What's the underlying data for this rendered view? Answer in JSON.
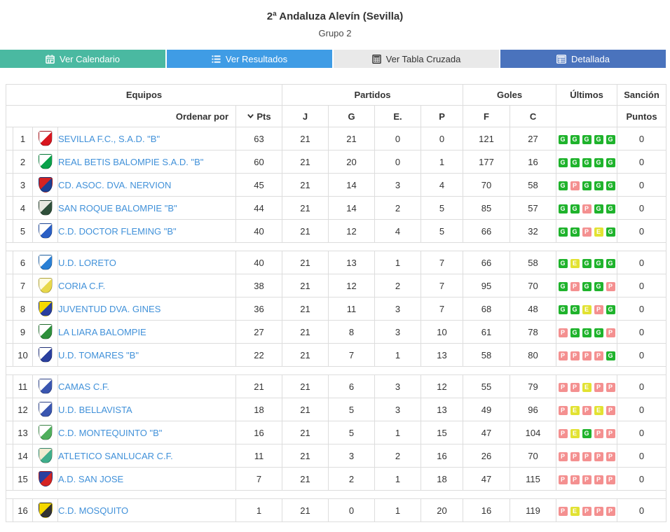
{
  "header": {
    "title": "2ª Andaluza Alevín (Sevilla)",
    "subtitle": "Grupo 2"
  },
  "tabs": [
    {
      "label": "Ver Calendario",
      "icon": "calendar-icon",
      "bg": "#4ab9a1",
      "fg": "#ffffff"
    },
    {
      "label": "Ver Resultados",
      "icon": "list-icon",
      "bg": "#3f9ce5",
      "fg": "#ffffff"
    },
    {
      "label": "Ver Tabla Cruzada",
      "icon": "grid-icon",
      "bg": "#e9e9e9",
      "fg": "#333333"
    },
    {
      "label": "Detallada",
      "icon": "table-icon",
      "bg": "#4a73bd",
      "fg": "#ffffff"
    }
  ],
  "table": {
    "group_headers": {
      "equipos": "Equipos",
      "partidos": "Partidos",
      "goles": "Goles",
      "ultimos": "Últimos",
      "sancion": "Sanción"
    },
    "sub_headers": {
      "ordenar": "Ordenar por",
      "pts": "Pts",
      "j": "J",
      "g": "G",
      "e": "E.",
      "p": "P",
      "f": "F",
      "c": "C",
      "puntos": "Puntos"
    },
    "link_color": "#4191d9",
    "form_colors": {
      "G": "#1fb32c",
      "E": "#e2e232",
      "P": "#f49090"
    },
    "separators_after": [
      5,
      10,
      15
    ],
    "rows": [
      {
        "pos": 1,
        "team": "SEVILLA F.C., S.A.D. \"B\"",
        "pts": 63,
        "j": 21,
        "g": 21,
        "e": 0,
        "p": 0,
        "f": 121,
        "c": 27,
        "form": [
          "G",
          "G",
          "G",
          "G",
          "G"
        ],
        "sancion": 0,
        "crest": {
          "primary": "#d8161f",
          "secondary": "#ffffff"
        }
      },
      {
        "pos": 2,
        "team": "REAL BETIS BALOMPIE S.A.D. \"B\"",
        "pts": 60,
        "j": 21,
        "g": 20,
        "e": 0,
        "p": 1,
        "f": 177,
        "c": 16,
        "form": [
          "G",
          "G",
          "G",
          "G",
          "G"
        ],
        "sancion": 0,
        "crest": {
          "primary": "#0aa14a",
          "secondary": "#ffffff"
        }
      },
      {
        "pos": 3,
        "team": "CD. ASOC. DVA. NERVION",
        "pts": 45,
        "j": 21,
        "g": 14,
        "e": 3,
        "p": 4,
        "f": 70,
        "c": 58,
        "form": [
          "G",
          "P",
          "G",
          "G",
          "G"
        ],
        "sancion": 0,
        "crest": {
          "primary": "#1b3f94",
          "secondary": "#d42323"
        }
      },
      {
        "pos": 4,
        "team": "SAN ROQUE BALOMPIE \"B\"",
        "pts": 44,
        "j": 21,
        "g": 14,
        "e": 2,
        "p": 5,
        "f": 85,
        "c": 57,
        "form": [
          "G",
          "G",
          "P",
          "G",
          "G"
        ],
        "sancion": 0,
        "crest": {
          "primary": "#2f4f3a",
          "secondary": "#e8e8e0"
        }
      },
      {
        "pos": 5,
        "team": "C.D. DOCTOR FLEMING \"B\"",
        "pts": 40,
        "j": 21,
        "g": 12,
        "e": 4,
        "p": 5,
        "f": 66,
        "c": 32,
        "form": [
          "G",
          "G",
          "P",
          "E",
          "G"
        ],
        "sancion": 0,
        "crest": {
          "primary": "#2a5fc4",
          "secondary": "#ffffff"
        }
      },
      {
        "pos": 6,
        "team": "U.D. LORETO",
        "pts": 40,
        "j": 21,
        "g": 13,
        "e": 1,
        "p": 7,
        "f": 66,
        "c": 58,
        "form": [
          "G",
          "E",
          "G",
          "G",
          "G"
        ],
        "sancion": 0,
        "crest": {
          "primary": "#2a7fd4",
          "secondary": "#ffffff"
        }
      },
      {
        "pos": 7,
        "team": "CORIA C.F.",
        "pts": 38,
        "j": 21,
        "g": 12,
        "e": 2,
        "p": 7,
        "f": 95,
        "c": 70,
        "form": [
          "G",
          "P",
          "G",
          "G",
          "P"
        ],
        "sancion": 0,
        "crest": {
          "primary": "#e8d84a",
          "secondary": "#fffbe0"
        }
      },
      {
        "pos": 8,
        "team": "JUVENTUD DVA. GINES",
        "pts": 36,
        "j": 21,
        "g": 11,
        "e": 3,
        "p": 7,
        "f": 68,
        "c": 48,
        "form": [
          "G",
          "G",
          "E",
          "P",
          "G"
        ],
        "sancion": 0,
        "crest": {
          "primary": "#2a3f9e",
          "secondary": "#f5d800"
        }
      },
      {
        "pos": 9,
        "team": "LA LIARA BALOMPIE",
        "pts": 27,
        "j": 21,
        "g": 8,
        "e": 3,
        "p": 10,
        "f": 61,
        "c": 78,
        "form": [
          "P",
          "G",
          "G",
          "G",
          "P"
        ],
        "sancion": 0,
        "crest": {
          "primary": "#2e8f3c",
          "secondary": "#ffffff"
        }
      },
      {
        "pos": 10,
        "team": "U.D. TOMARES \"B\"",
        "pts": 22,
        "j": 21,
        "g": 7,
        "e": 1,
        "p": 13,
        "f": 58,
        "c": 80,
        "form": [
          "P",
          "P",
          "P",
          "P",
          "G"
        ],
        "sancion": 0,
        "crest": {
          "primary": "#2a3f9e",
          "secondary": "#ffffff"
        }
      },
      {
        "pos": 11,
        "team": "CAMAS C.F.",
        "pts": 21,
        "j": 21,
        "g": 6,
        "e": 3,
        "p": 12,
        "f": 55,
        "c": 79,
        "form": [
          "P",
          "P",
          "E",
          "P",
          "P"
        ],
        "sancion": 0,
        "crest": {
          "primary": "#3a56b0",
          "secondary": "#ffffff"
        }
      },
      {
        "pos": 12,
        "team": "U.D. BELLAVISTA",
        "pts": 18,
        "j": 21,
        "g": 5,
        "e": 3,
        "p": 13,
        "f": 49,
        "c": 96,
        "form": [
          "P",
          "E",
          "P",
          "E",
          "P"
        ],
        "sancion": 0,
        "crest": {
          "primary": "#3a56b0",
          "secondary": "#ffffff"
        }
      },
      {
        "pos": 13,
        "team": "C.D. MONTEQUINTO \"B\"",
        "pts": 16,
        "j": 21,
        "g": 5,
        "e": 1,
        "p": 15,
        "f": 47,
        "c": 104,
        "form": [
          "P",
          "E",
          "G",
          "P",
          "P"
        ],
        "sancion": 0,
        "crest": {
          "primary": "#4fae5c",
          "secondary": "#ffffff"
        }
      },
      {
        "pos": 14,
        "team": "ATLETICO SANLUCAR C.F.",
        "pts": 11,
        "j": 21,
        "g": 3,
        "e": 2,
        "p": 16,
        "f": 26,
        "c": 70,
        "form": [
          "P",
          "P",
          "P",
          "P",
          "P"
        ],
        "sancion": 0,
        "crest": {
          "primary": "#3fae8c",
          "secondary": "#f0ecd0"
        }
      },
      {
        "pos": 15,
        "team": "A.D. SAN JOSE",
        "pts": 7,
        "j": 21,
        "g": 2,
        "e": 1,
        "p": 18,
        "f": 47,
        "c": 115,
        "form": [
          "P",
          "P",
          "P",
          "P",
          "P"
        ],
        "sancion": 0,
        "crest": {
          "primary": "#d42323",
          "secondary": "#2a3f9e"
        }
      },
      {
        "pos": 16,
        "team": "C.D. MOSQUITO",
        "pts": 1,
        "j": 21,
        "g": 0,
        "e": 1,
        "p": 20,
        "f": 16,
        "c": 119,
        "form": [
          "P",
          "E",
          "P",
          "P",
          "P"
        ],
        "sancion": 0,
        "crest": {
          "primary": "#333333",
          "secondary": "#f5d800"
        }
      }
    ]
  }
}
